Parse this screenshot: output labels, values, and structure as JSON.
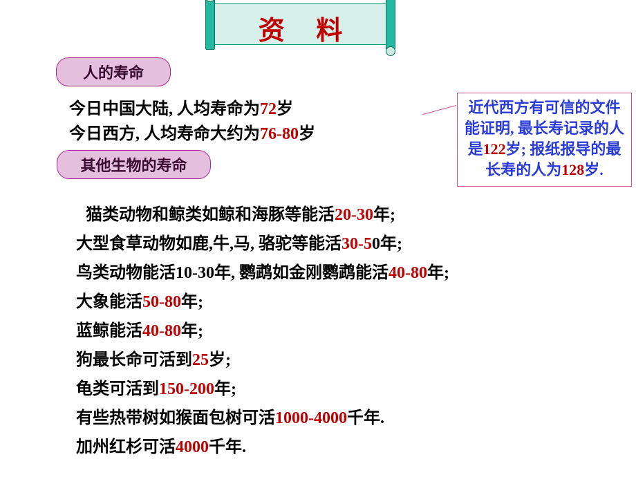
{
  "colors": {
    "highlight": "#c00000",
    "callout_text": "#2a3bd6",
    "callout_border": "#d94a8a",
    "tag_bg": "#e5c0de",
    "tag_border": "#a82a8f",
    "scroll_body": "#d7f0e9",
    "scroll_cap": "#22b9a0",
    "scroll_border": "#0a7560",
    "background": "#ffffff"
  },
  "typography": {
    "body_fontsize": 24,
    "title_fontsize": 38,
    "tag_fontsize": 22,
    "callout_fontsize": 22,
    "list_lineheight": 42
  },
  "scroll": {
    "title": "资  料"
  },
  "tags": {
    "human": "人的寿命",
    "others": "其他生物的寿命"
  },
  "intro": {
    "line1_pre": "今日中国大陆, 人均寿命为",
    "line1_num": "72",
    "line1_suf": "岁",
    "line2_pre": "今日西方, 人均寿命大约为",
    "line2_num": "76-80",
    "line2_suf": "岁"
  },
  "callout": {
    "t1": "近代西方有可信的文件能证明, 最长寿记录的人是",
    "n1": "122",
    "t2": "岁; 报纸报导的最长寿的人为",
    "n2": "128",
    "t3": "岁."
  },
  "list": [
    {
      "pre": "猫类动物和鲸类如鲸和海豚等能活",
      "num": "20-30",
      "suf": "年;"
    },
    {
      "pre": "大型食草动物如鹿,牛,马, 骆驼等能活",
      "num": "30-5",
      "black": "0",
      "suf": "年;"
    },
    {
      "pre": "鸟类动物能活",
      "black2": "10-30",
      "mid": "年, 鹦鹉如金刚鹦鹉能活",
      "num": "40-80",
      "suf": "年;"
    },
    {
      "pre": "大象能活",
      "num": "50-80",
      "suf": "年;"
    },
    {
      "pre": "蓝鲸能活",
      "num": "40-80",
      "suf": "年;"
    },
    {
      "pre": "狗最长命可活到",
      "num": "25",
      "suf": "岁;"
    },
    {
      "pre": "龟类可活到",
      "num": "150-200",
      "suf": "年;"
    },
    {
      "pre": "有些热带树如猴面包树可活",
      "num": "1000-4000",
      "suf": "千年."
    },
    {
      "pre": "加州红杉可活",
      "num": "4000",
      "suf": "千年."
    }
  ]
}
